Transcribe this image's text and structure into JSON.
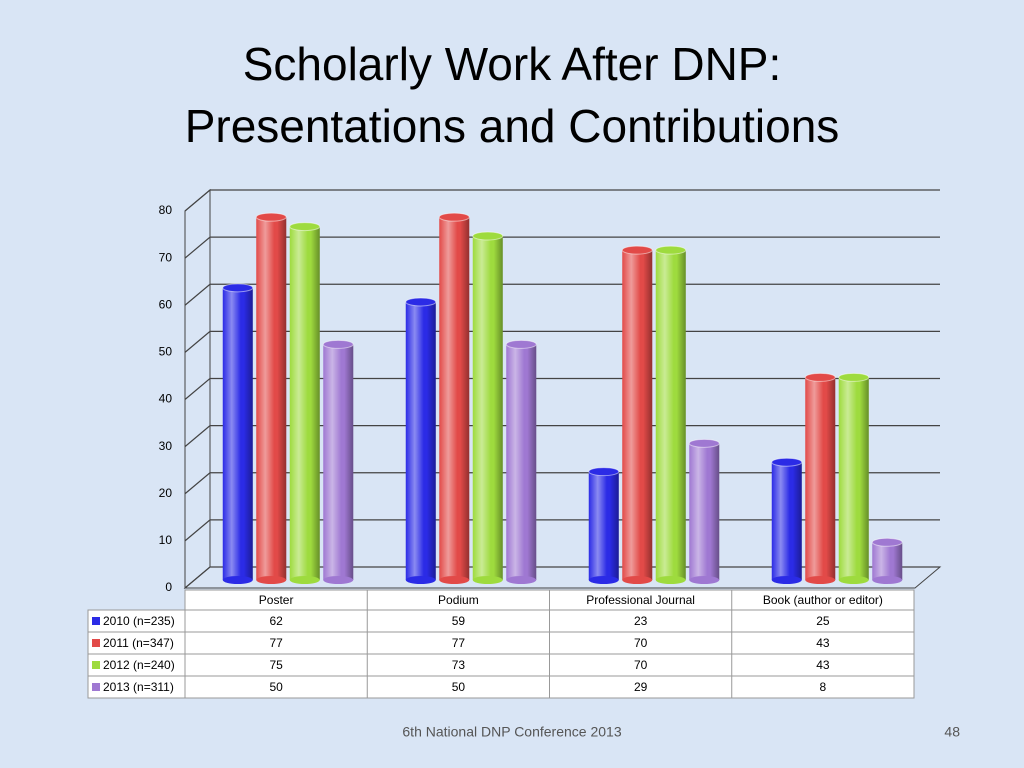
{
  "chart_data": {
    "type": "bar3d",
    "title": "Scholarly Work After DNP:",
    "subtitle": "Presentations and Contributions",
    "categories": [
      "Poster",
      "Podium",
      "Professional Journal",
      "Book (author or editor)"
    ],
    "series": [
      {
        "name": "2010 (n=235)",
        "color": "#2b2be6",
        "values": [
          62,
          59,
          23,
          25
        ]
      },
      {
        "name": "2011 (n=347)",
        "color": "#e24a48",
        "values": [
          77,
          77,
          70,
          43
        ]
      },
      {
        "name": "2012 (n=240)",
        "color": "#9edb3e",
        "values": [
          75,
          73,
          70,
          43
        ]
      },
      {
        "name": "2013 (n=311)",
        "color": "#9f78d2",
        "values": [
          50,
          50,
          29,
          8
        ]
      }
    ],
    "ylim": [
      0,
      80
    ],
    "yticks": [
      0,
      10,
      20,
      30,
      40,
      50,
      60,
      70,
      80
    ],
    "grid": true,
    "footer": "6th National DNP Conference  2013",
    "page_number": "48"
  }
}
